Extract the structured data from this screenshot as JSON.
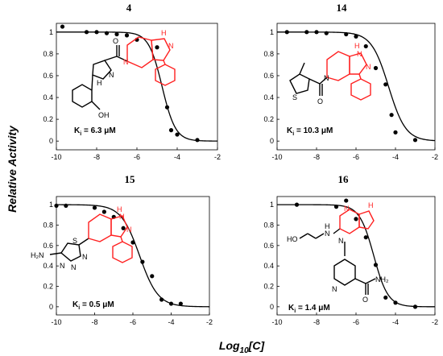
{
  "figure": {
    "ylabel": "Relative Activity",
    "xlabel_base": "Log",
    "xlabel_sub": "10",
    "xlabel_tail": "[C]"
  },
  "chart_data": [
    {
      "type": "scatter",
      "title": "4",
      "ki_label": "K",
      "ki_sub": "i",
      "ki_value": " = 6.3 μM",
      "xlim": [
        -10,
        -2
      ],
      "ylim": [
        -0.08,
        1.08
      ],
      "xticks": [
        "-10",
        "-8",
        "-6",
        "-4",
        "-2"
      ],
      "yticks": [
        "0",
        "0.2",
        "0.4",
        "0.6",
        "0.8",
        "1"
      ],
      "grid": false,
      "points": [
        [
          -9.7,
          1.05
        ],
        [
          -8.5,
          1.0
        ],
        [
          -8.0,
          1.0
        ],
        [
          -7.5,
          0.99
        ],
        [
          -7.0,
          0.98
        ],
        [
          -6.5,
          0.97
        ],
        [
          -6.0,
          0.93
        ],
        [
          -5.0,
          0.86
        ],
        [
          -4.5,
          0.31
        ],
        [
          -4.3,
          0.1
        ],
        [
          -4.0,
          0.06
        ],
        [
          -3.0,
          0.01
        ]
      ],
      "fit": {
        "top": 1.0,
        "bottom": 0.0,
        "log_ic50": -4.75,
        "hill": 1.3
      },
      "molecule": {
        "black_labels": [
          "O",
          "N",
          "H",
          "OH"
        ],
        "red_labels": [
          "N",
          "H",
          "N"
        ]
      }
    },
    {
      "type": "scatter",
      "title": "14",
      "ki_label": "K",
      "ki_sub": "i",
      "ki_value": " = 10.3 μM",
      "xlim": [
        -10,
        -2
      ],
      "ylim": [
        -0.08,
        1.08
      ],
      "xticks": [
        "-10",
        "-8",
        "-6",
        "-4",
        "-2"
      ],
      "yticks": [
        "0",
        "0.2",
        "0.4",
        "0.6",
        "0.8",
        "1"
      ],
      "grid": false,
      "points": [
        [
          -9.5,
          1.0
        ],
        [
          -8.5,
          1.0
        ],
        [
          -8.0,
          1.0
        ],
        [
          -7.5,
          0.99
        ],
        [
          -6.5,
          0.98
        ],
        [
          -6.0,
          0.96
        ],
        [
          -5.5,
          0.87
        ],
        [
          -5.0,
          0.67
        ],
        [
          -4.5,
          0.52
        ],
        [
          -4.2,
          0.24
        ],
        [
          -4.0,
          0.08
        ],
        [
          -3.0,
          0.01
        ]
      ],
      "fit": {
        "top": 1.0,
        "bottom": 0.0,
        "log_ic50": -4.35,
        "hill": 1.0
      },
      "molecule": {
        "black_labels": [
          "S",
          "O",
          "N"
        ],
        "red_labels": [
          "H",
          "N",
          "N"
        ]
      }
    },
    {
      "type": "scatter",
      "title": "15",
      "ki_label": "K",
      "ki_sub": "i",
      "ki_value": " = 0.5 μM",
      "xlim": [
        -10,
        -2
      ],
      "ylim": [
        -0.08,
        1.08
      ],
      "xticks": [
        "-10",
        "-8",
        "-6",
        "-4",
        "-2"
      ],
      "yticks": [
        "0",
        "0.2",
        "0.4",
        "0.6",
        "0.8",
        "1"
      ],
      "grid": false,
      "points": [
        [
          -10.0,
          0.99
        ],
        [
          -9.5,
          0.99
        ],
        [
          -8.0,
          0.97
        ],
        [
          -7.5,
          0.93
        ],
        [
          -7.0,
          0.88
        ],
        [
          -6.5,
          0.77
        ],
        [
          -6.0,
          0.63
        ],
        [
          -5.5,
          0.44
        ],
        [
          -5.0,
          0.3
        ],
        [
          -4.5,
          0.07
        ],
        [
          -4.0,
          0.03
        ],
        [
          -3.5,
          0.03
        ]
      ],
      "fit": {
        "top": 1.0,
        "bottom": 0.0,
        "log_ic50": -5.65,
        "hill": 0.9
      },
      "molecule": {
        "black_labels": [
          "H₂N",
          "S",
          "N",
          "N",
          "N"
        ],
        "red_labels": [
          "H",
          "N",
          "N"
        ]
      }
    },
    {
      "type": "scatter",
      "title": "16",
      "ki_label": "K",
      "ki_sub": "i",
      "ki_value": " = 1.4 μM",
      "xlim": [
        -10,
        -2
      ],
      "ylim": [
        -0.08,
        1.08
      ],
      "xticks": [
        "-10",
        "-8",
        "-6",
        "-4",
        "-2"
      ],
      "yticks": [
        "0",
        "0.2",
        "0.4",
        "0.6",
        "0.8",
        "1"
      ],
      "grid": false,
      "points": [
        [
          -9.0,
          1.0
        ],
        [
          -7.0,
          0.98
        ],
        [
          -6.5,
          1.04
        ],
        [
          -6.0,
          0.86
        ],
        [
          -5.5,
          0.68
        ],
        [
          -5.0,
          0.41
        ],
        [
          -4.5,
          0.09
        ],
        [
          -4.0,
          0.04
        ],
        [
          -3.0,
          0.0
        ]
      ],
      "fit": {
        "top": 1.0,
        "bottom": 0.0,
        "log_ic50": -5.1,
        "hill": 1.2
      },
      "molecule": {
        "black_labels": [
          "HO",
          "N",
          "H",
          "N",
          "N",
          "NH₂",
          "O"
        ],
        "red_labels": [
          "N",
          "H"
        ]
      }
    }
  ]
}
